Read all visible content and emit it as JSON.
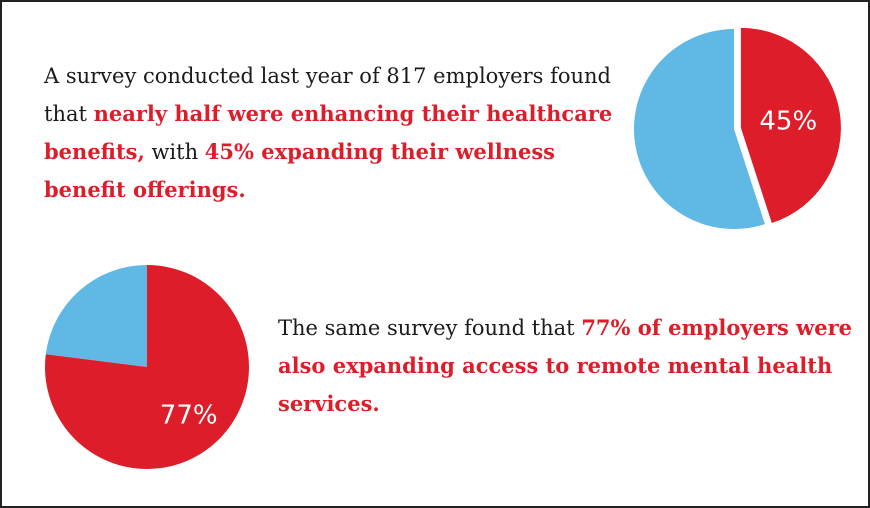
{
  "colors": {
    "red": "#dd1e2a",
    "blue": "#5fb9e4",
    "text": "#1a1a1a"
  },
  "paragraph1": {
    "part1": "A survey conducted last year of 817 employers found that ",
    "highlight1": "nearly half were enhancing their healthcare benefits,",
    "part2": " with ",
    "highlight2": "45% expanding their wellness benefit offerings."
  },
  "paragraph2": {
    "part1": "The same survey found that ",
    "highlight1": "77% of employers were also expanding access to remote mental health services."
  },
  "chart_data": [
    {
      "type": "pie",
      "slices": [
        {
          "value": 45,
          "label": "45%",
          "color": "#dd1e2a",
          "exploded": true
        },
        {
          "value": 55,
          "label": "",
          "color": "#5fb9e4",
          "exploded": false
        }
      ]
    },
    {
      "type": "pie",
      "slices": [
        {
          "value": 77,
          "label": "77%",
          "color": "#dd1e2a",
          "exploded": false
        },
        {
          "value": 23,
          "label": "",
          "color": "#5fb9e4",
          "exploded": false
        }
      ]
    }
  ]
}
